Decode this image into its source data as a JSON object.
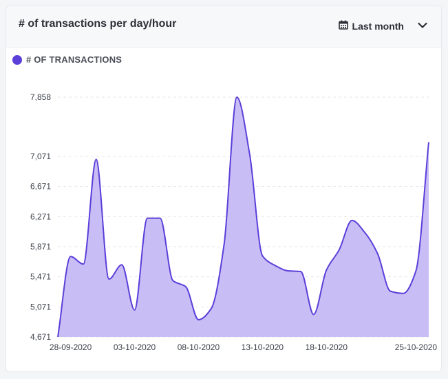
{
  "card": {
    "title": "# of transactions per day/hour",
    "period_label": "Last month",
    "calendar_icon": "calendar-icon",
    "chevron_icon": "chevron-down-icon"
  },
  "colors": {
    "series_line": "#5b3fd9",
    "series_fill": "#c9bdf5",
    "legend_dot": "#5b3fd9",
    "grid": "#e3e5ea"
  },
  "chart_data": {
    "type": "area",
    "title": "",
    "xlabel": "",
    "ylabel": "",
    "legend": [
      "# OF TRANSACTIONS"
    ],
    "legend_position": "top-left",
    "grid": true,
    "x": [
      "27-09-2020",
      "28-09-2020",
      "29-09-2020",
      "30-09-2020",
      "01-10-2020",
      "02-10-2020",
      "03-10-2020",
      "04-10-2020",
      "05-10-2020",
      "06-10-2020",
      "07-10-2020",
      "08-10-2020",
      "09-10-2020",
      "10-10-2020",
      "11-10-2020",
      "12-10-2020",
      "13-10-2020",
      "14-10-2020",
      "15-10-2020",
      "16-10-2020",
      "17-10-2020",
      "18-10-2020",
      "19-10-2020",
      "20-10-2020",
      "21-10-2020",
      "22-10-2020",
      "23-10-2020",
      "24-10-2020",
      "25-10-2020",
      "26-10-2020"
    ],
    "x_tick_labels": [
      "28-09-2020",
      "03-10-2020",
      "08-10-2020",
      "13-10-2020",
      "18-10-2020",
      "25-10-2020"
    ],
    "y_tick_labels": [
      "4,671",
      "5,071",
      "5,471",
      "5,871",
      "6,271",
      "6,671",
      "7,071",
      "7,858"
    ],
    "ylim": [
      4671,
      7858
    ],
    "series": [
      {
        "name": "# OF TRANSACTIONS",
        "values": [
          4671,
          5740,
          5640,
          7030,
          5440,
          5630,
          5030,
          6250,
          6250,
          5420,
          5340,
          4900,
          5050,
          5900,
          7858,
          7100,
          5750,
          5620,
          5550,
          5540,
          4970,
          5560,
          5830,
          6220,
          6060,
          5780,
          5280,
          5250,
          5550,
          7260
        ]
      }
    ]
  }
}
